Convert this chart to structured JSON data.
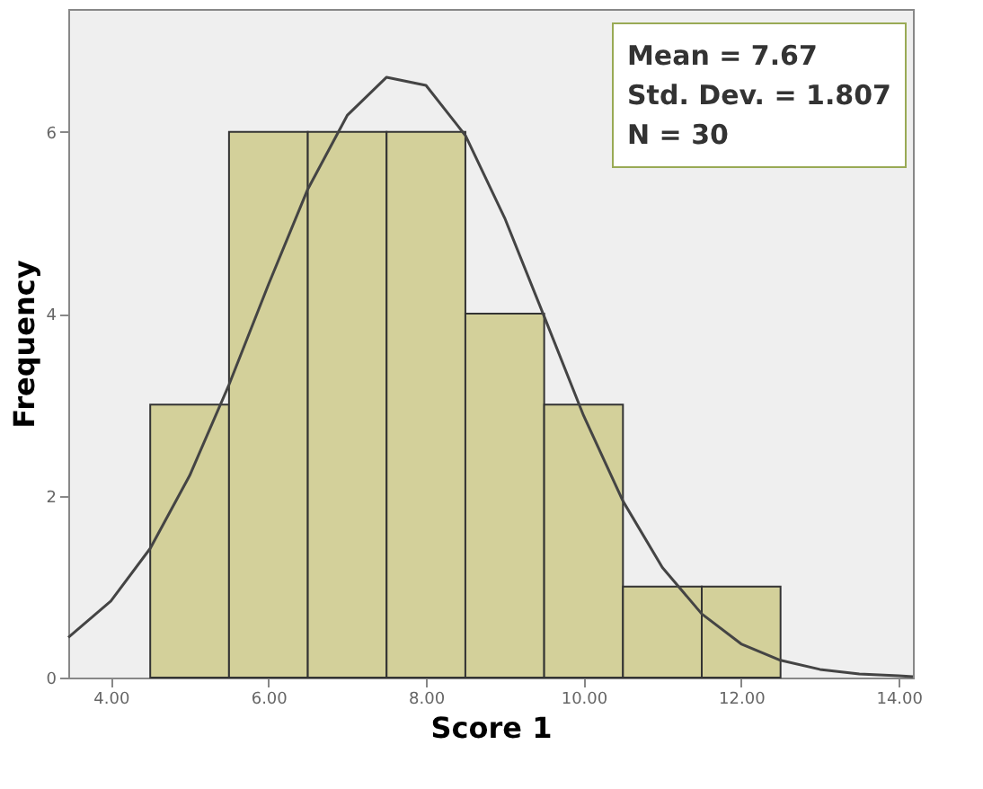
{
  "chart_data": {
    "type": "histogram",
    "xlabel": "Score 1",
    "ylabel": "Frequency",
    "bins": [
      4.5,
      5.5,
      6.5,
      7.5,
      8.5,
      9.5,
      10.5,
      11.5,
      12.5
    ],
    "values": [
      3,
      6,
      6,
      6,
      4,
      3,
      1,
      1
    ],
    "color": "#d3d09a",
    "series": [
      {
        "type": "line",
        "color": "#444444",
        "x": [
          3.46,
          4,
          4.5,
          5,
          5.5,
          6,
          6.5,
          7,
          7.5,
          8,
          8.5,
          9,
          9.5,
          10,
          10.5,
          11,
          11.5,
          12,
          12.5,
          13,
          13.5,
          14,
          14.18
        ],
        "values": [
          0.44,
          0.84,
          1.42,
          2.22,
          3.22,
          4.32,
          5.37,
          6.18,
          6.6,
          6.51,
          5.96,
          5.05,
          3.97,
          2.88,
          1.94,
          1.21,
          0.7,
          0.37,
          0.19,
          0.09,
          0.04,
          0.02,
          0.01
        ]
      }
    ],
    "xlim": [
      3.46,
      14.18
    ],
    "xticks": [
      {
        "value": 4,
        "label": "4.00"
      },
      {
        "value": 6,
        "label": "6.00"
      },
      {
        "value": 8,
        "label": "8.00"
      },
      {
        "value": 10,
        "label": "10.00"
      },
      {
        "value": 12,
        "label": "12.00"
      },
      {
        "value": 14,
        "label": "14.00"
      }
    ],
    "ylim": [
      0,
      7.35
    ],
    "yticks": [
      0,
      2,
      4,
      6
    ],
    "grid": false,
    "line_style": "solid",
    "marker": "none",
    "annotations": [
      "Mean = 7.67",
      "Std. Dev. = 1.807",
      "N = 30"
    ]
  }
}
